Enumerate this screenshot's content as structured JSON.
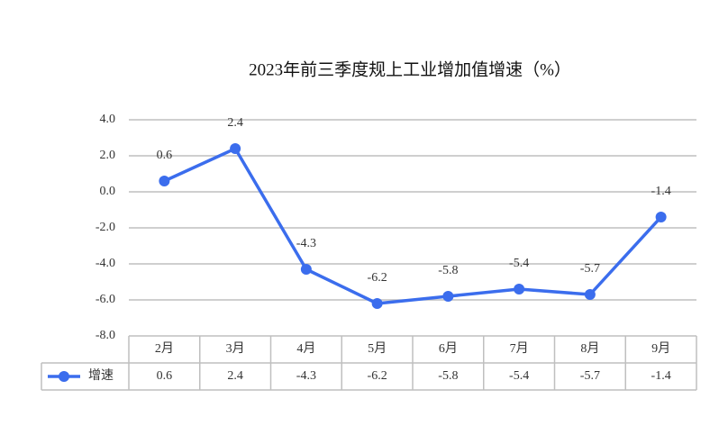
{
  "chart_data": {
    "type": "line",
    "title": "2023年前三季度规上工业增加值增速（%）",
    "categories": [
      "2月",
      "3月",
      "4月",
      "5月",
      "6月",
      "7月",
      "8月",
      "9月"
    ],
    "series": [
      {
        "name": "增速",
        "color": "#3b6ded",
        "values": [
          0.6,
          2.4,
          -4.3,
          -6.2,
          -5.8,
          -5.4,
          -5.7,
          -1.4
        ]
      }
    ],
    "ylim": [
      -8,
      4
    ],
    "yticks": [
      {
        "value": -8,
        "label": "-8.0"
      },
      {
        "value": -6,
        "label": "-6.0"
      },
      {
        "value": -4,
        "label": "-4.0"
      },
      {
        "value": -2,
        "label": "-2.0"
      },
      {
        "value": 0,
        "label": "0.0"
      },
      {
        "value": 2,
        "label": "2.0"
      },
      {
        "value": 4,
        "label": "4.0"
      }
    ],
    "grid": true,
    "data_table": true
  }
}
